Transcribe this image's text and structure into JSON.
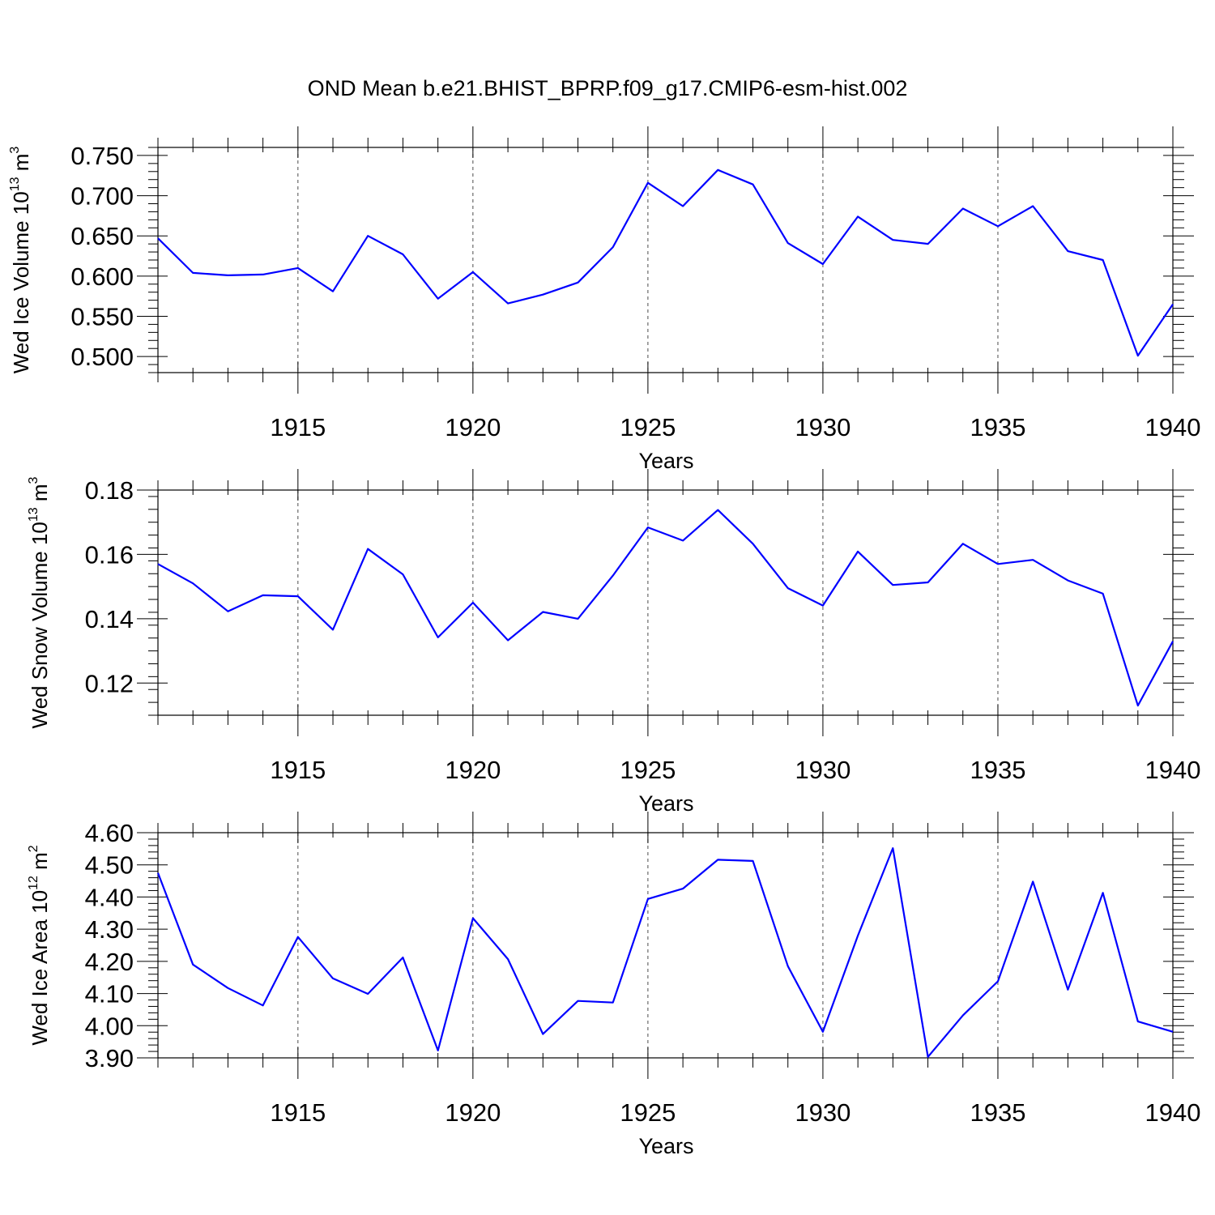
{
  "title": "OND Mean b.e21.BHIST_BPRP.f09_g17.CMIP6-esm-hist.002",
  "chart_data": [
    {
      "type": "line",
      "ylabel": "Wed Ice Volume 10",
      "ylabel_exp": "13",
      "ylabel_unit": " m",
      "ylabel_unit_exp": "3",
      "xlabel": "Years",
      "xlim": [
        1911,
        1940
      ],
      "ylim": [
        0.48,
        0.76
      ],
      "yticks": [
        0.5,
        0.55,
        0.6,
        0.65,
        0.7,
        0.75
      ],
      "yticklabels": [
        "0.500",
        "0.550",
        "0.600",
        "0.650",
        "0.700",
        "0.750"
      ],
      "ylabel_x": 35,
      "series": [
        {
          "color": "#0000ff",
          "x": [
            1911,
            1912,
            1913,
            1914,
            1915,
            1916,
            1917,
            1918,
            1919,
            1920,
            1921,
            1922,
            1923,
            1924,
            1925,
            1926,
            1927,
            1928,
            1929,
            1930,
            1931,
            1932,
            1933,
            1934,
            1935,
            1936,
            1937,
            1938,
            1939,
            1940
          ],
          "y": [
            0.647,
            0.604,
            0.601,
            0.602,
            0.61,
            0.581,
            0.65,
            0.627,
            0.572,
            0.605,
            0.566,
            0.577,
            0.592,
            0.636,
            0.716,
            0.687,
            0.732,
            0.714,
            0.641,
            0.615,
            0.674,
            0.645,
            0.64,
            0.684,
            0.662,
            0.687,
            0.631,
            0.62,
            0.501,
            0.565
          ]
        }
      ]
    },
    {
      "type": "line",
      "ylabel": "Wed Snow Volume 10",
      "ylabel_exp": "13",
      "ylabel_unit": " m",
      "ylabel_unit_exp": "3",
      "xlabel": "Years",
      "xlim": [
        1911,
        1940
      ],
      "ylim": [
        0.11,
        0.18
      ],
      "yticks": [
        0.12,
        0.14,
        0.16,
        0.18
      ],
      "yticklabels": [
        "0.12",
        "0.14",
        "0.16",
        "0.18"
      ],
      "ylabel_x": 58,
      "series": [
        {
          "color": "#0000ff",
          "x": [
            1911,
            1912,
            1913,
            1914,
            1915,
            1916,
            1917,
            1918,
            1919,
            1920,
            1921,
            1922,
            1923,
            1924,
            1925,
            1926,
            1927,
            1928,
            1929,
            1930,
            1931,
            1932,
            1933,
            1934,
            1935,
            1936,
            1937,
            1938,
            1939,
            1940
          ],
          "y": [
            0.157,
            0.151,
            0.1423,
            0.1473,
            0.147,
            0.1366,
            0.1617,
            0.1538,
            0.1342,
            0.145,
            0.1333,
            0.1421,
            0.14,
            0.1534,
            0.1684,
            0.1643,
            0.1738,
            0.1633,
            0.1495,
            0.1441,
            0.1609,
            0.1505,
            0.1513,
            0.1633,
            0.157,
            0.1583,
            0.1519,
            0.1478,
            0.113,
            0.133
          ]
        }
      ]
    },
    {
      "type": "line",
      "ylabel": "Wed Ice Area 10",
      "ylabel_exp": "12",
      "ylabel_unit": " m",
      "ylabel_unit_exp": "2",
      "xlabel": "Years",
      "xlim": [
        1911,
        1940
      ],
      "ylim": [
        3.9,
        4.6
      ],
      "yticks": [
        3.9,
        4.0,
        4.1,
        4.2,
        4.3,
        4.4,
        4.5,
        4.6
      ],
      "yticklabels": [
        "3.90",
        "4.00",
        "4.10",
        "4.20",
        "4.30",
        "4.40",
        "4.50",
        "4.60"
      ],
      "ylabel_x": 58,
      "series": [
        {
          "color": "#0000ff",
          "x": [
            1911,
            1912,
            1913,
            1914,
            1915,
            1916,
            1917,
            1918,
            1919,
            1920,
            1921,
            1922,
            1923,
            1924,
            1925,
            1926,
            1927,
            1928,
            1929,
            1930,
            1931,
            1932,
            1933,
            1934,
            1935,
            1936,
            1937,
            1938,
            1939,
            1940
          ],
          "y": [
            4.475,
            4.19,
            4.117,
            4.063,
            4.276,
            4.147,
            4.099,
            4.212,
            3.923,
            4.334,
            4.207,
            3.974,
            4.077,
            4.072,
            4.394,
            4.426,
            4.516,
            4.512,
            4.185,
            3.981,
            4.28,
            4.552,
            3.903,
            4.032,
            4.138,
            4.448,
            4.112,
            4.413,
            4.013,
            3.981
          ]
        }
      ]
    }
  ],
  "xticks": [
    1915,
    1920,
    1925,
    1930,
    1935,
    1940
  ],
  "xticklabels": [
    "1915",
    "1920",
    "1925",
    "1930",
    "1935",
    "1940"
  ]
}
